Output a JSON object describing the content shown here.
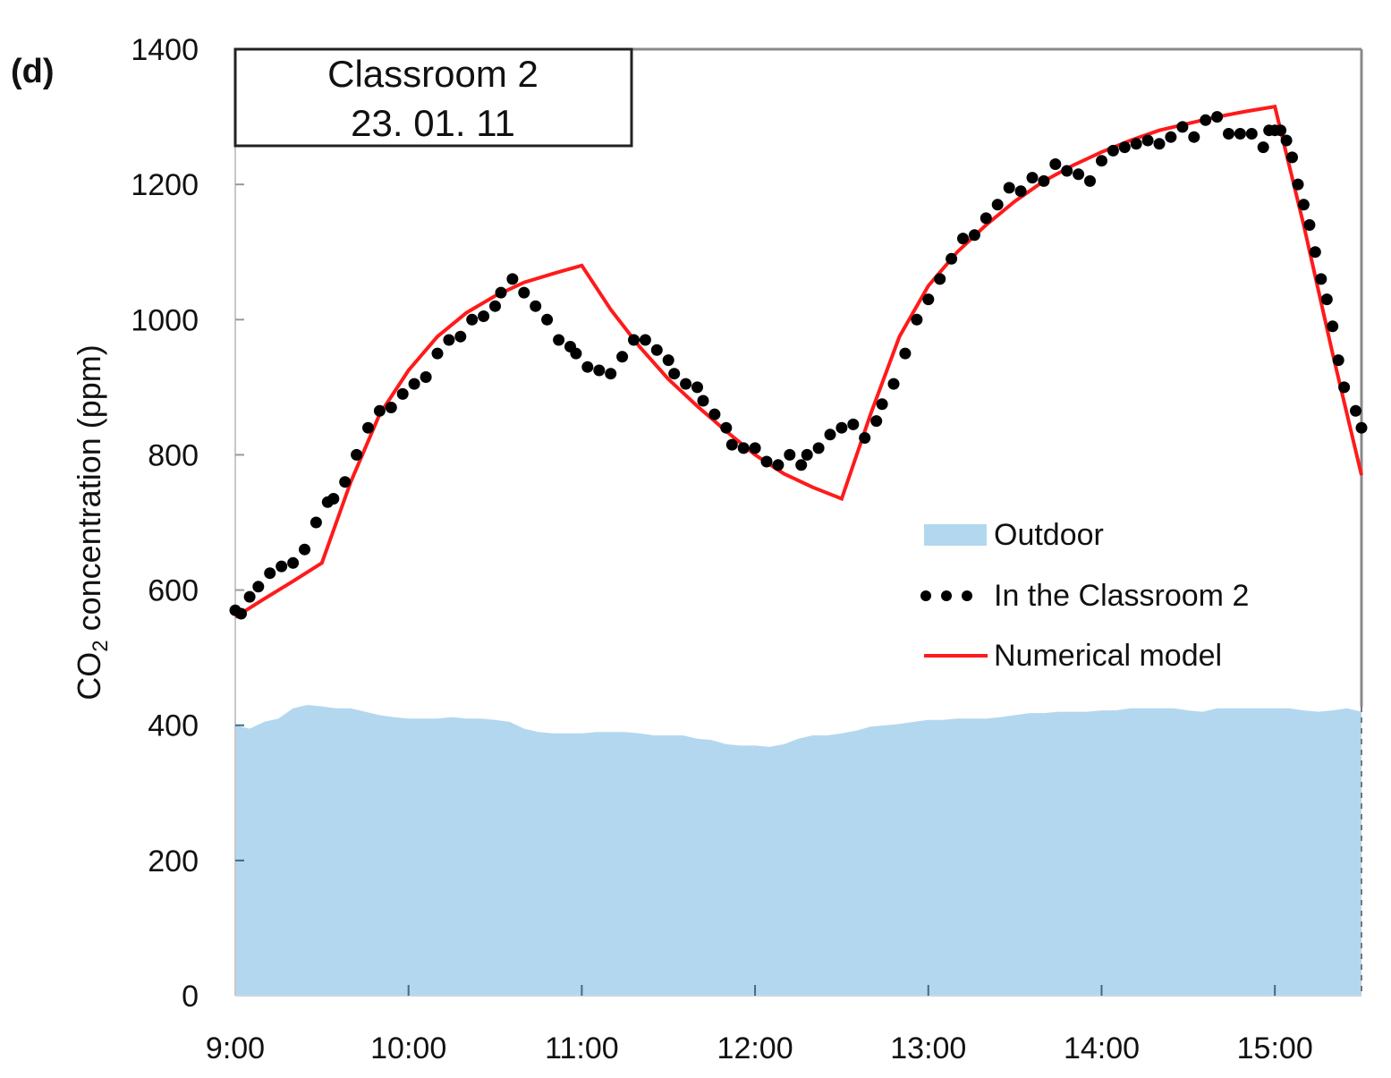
{
  "panel_label": "(d)",
  "title_box": {
    "line1": "Classroom 2",
    "line2": "23. 01. 11"
  },
  "y_axis": {
    "label_main": "CO",
    "label_sub": "2",
    "label_rest": " concentration (ppm)"
  },
  "legend": {
    "outdoor": "Outdoor",
    "measured": "In the Classroom 2",
    "model": "Numerical model"
  },
  "colors": {
    "outdoor": "#b3d7ef",
    "measured": "#000000",
    "model": "#ff1a1a",
    "frame": "#888888"
  },
  "chart_data": {
    "type": "line",
    "title": "Classroom 2 23. 01. 11",
    "panel": "(d)",
    "xlabel": "",
    "ylabel": "CO2 concentration (ppm)",
    "x_unit": "minutes after 9:00",
    "xlim": [
      0,
      390
    ],
    "ylim": [
      0,
      1400
    ],
    "x_ticks": [
      {
        "x": 0,
        "label": "9:00"
      },
      {
        "x": 60,
        "label": "10:00"
      },
      {
        "x": 120,
        "label": "11:00"
      },
      {
        "x": 180,
        "label": "12:00"
      },
      {
        "x": 240,
        "label": "13:00"
      },
      {
        "x": 300,
        "label": "14:00"
      },
      {
        "x": 360,
        "label": "15:00"
      }
    ],
    "y_ticks": [
      0,
      200,
      400,
      600,
      800,
      1000,
      1200,
      1400
    ],
    "grid": false,
    "legend_position": "center-right",
    "series": [
      {
        "name": "Outdoor",
        "style": "area",
        "x": [
          0,
          5,
          10,
          15,
          20,
          25,
          30,
          35,
          40,
          45,
          50,
          55,
          60,
          65,
          70,
          75,
          80,
          85,
          90,
          95,
          100,
          105,
          110,
          115,
          120,
          125,
          130,
          135,
          140,
          145,
          150,
          155,
          160,
          165,
          170,
          175,
          180,
          185,
          190,
          195,
          200,
          205,
          210,
          215,
          220,
          225,
          230,
          235,
          240,
          245,
          250,
          255,
          260,
          265,
          270,
          275,
          280,
          285,
          290,
          295,
          300,
          305,
          310,
          315,
          320,
          325,
          330,
          335,
          340,
          345,
          350,
          355,
          360,
          365,
          370,
          375,
          380,
          385,
          390
        ],
        "values": [
          400,
          395,
          405,
          410,
          425,
          430,
          428,
          425,
          425,
          420,
          415,
          412,
          410,
          410,
          410,
          412,
          410,
          410,
          408,
          405,
          395,
          390,
          388,
          388,
          388,
          390,
          390,
          390,
          388,
          385,
          385,
          385,
          380,
          378,
          372,
          370,
          370,
          368,
          372,
          380,
          385,
          385,
          388,
          392,
          398,
          400,
          402,
          405,
          408,
          408,
          410,
          410,
          410,
          412,
          415,
          418,
          418,
          420,
          420,
          420,
          422,
          422,
          425,
          425,
          425,
          425,
          422,
          420,
          425,
          425,
          425,
          425,
          425,
          425,
          422,
          420,
          422,
          425,
          420
        ]
      },
      {
        "name": "In the Classroom 2",
        "style": "dots",
        "x": [
          0,
          2,
          5,
          8,
          12,
          16,
          20,
          24,
          28,
          32,
          34,
          38,
          42,
          46,
          50,
          54,
          58,
          62,
          66,
          70,
          74,
          78,
          82,
          86,
          90,
          92,
          96,
          100,
          104,
          108,
          112,
          116,
          118,
          122,
          126,
          130,
          134,
          138,
          142,
          146,
          150,
          152,
          156,
          160,
          162,
          166,
          170,
          172,
          176,
          180,
          184,
          188,
          192,
          196,
          198,
          202,
          206,
          210,
          214,
          218,
          222,
          224,
          228,
          232,
          236,
          240,
          244,
          248,
          252,
          256,
          260,
          264,
          268,
          272,
          276,
          280,
          284,
          288,
          292,
          296,
          300,
          304,
          308,
          312,
          316,
          320,
          324,
          328,
          332,
          336,
          340,
          344,
          348,
          352,
          356,
          358,
          360,
          362,
          364,
          366,
          368,
          370,
          372,
          374,
          376,
          378,
          380,
          382,
          384,
          388,
          390
        ],
        "values": [
          570,
          565,
          590,
          605,
          625,
          635,
          640,
          660,
          700,
          730,
          735,
          760,
          800,
          840,
          865,
          870,
          890,
          905,
          915,
          950,
          970,
          975,
          1000,
          1005,
          1020,
          1040,
          1060,
          1040,
          1020,
          1000,
          970,
          960,
          950,
          930,
          925,
          920,
          945,
          970,
          970,
          955,
          940,
          920,
          905,
          900,
          880,
          860,
          840,
          815,
          810,
          810,
          790,
          785,
          800,
          785,
          800,
          810,
          830,
          840,
          845,
          825,
          850,
          875,
          905,
          950,
          1000,
          1030,
          1060,
          1090,
          1120,
          1125,
          1150,
          1170,
          1195,
          1190,
          1210,
          1205,
          1230,
          1220,
          1215,
          1205,
          1235,
          1250,
          1255,
          1260,
          1265,
          1260,
          1270,
          1285,
          1270,
          1295,
          1300,
          1275,
          1275,
          1275,
          1255,
          1280,
          1280,
          1280,
          1265,
          1240,
          1200,
          1170,
          1140,
          1100,
          1060,
          1030,
          990,
          940,
          900,
          865,
          840
        ]
      },
      {
        "name": "Numerical model",
        "style": "line",
        "x": [
          0,
          10,
          20,
          30,
          40,
          50,
          60,
          70,
          80,
          90,
          100,
          110,
          120,
          130,
          140,
          150,
          160,
          170,
          180,
          190,
          200,
          210,
          220,
          230,
          240,
          250,
          260,
          270,
          280,
          290,
          300,
          310,
          320,
          330,
          340,
          350,
          360,
          370,
          380,
          390
        ],
        "values": [
          560,
          587,
          613,
          640,
          760,
          860,
          925,
          975,
          1010,
          1035,
          1055,
          1068,
          1080,
          1015,
          960,
          912,
          872,
          835,
          800,
          772,
          752,
          735,
          860,
          975,
          1050,
          1100,
          1140,
          1175,
          1205,
          1228,
          1248,
          1265,
          1280,
          1290,
          1300,
          1308,
          1315,
          1140,
          950,
          770
        ]
      }
    ]
  }
}
